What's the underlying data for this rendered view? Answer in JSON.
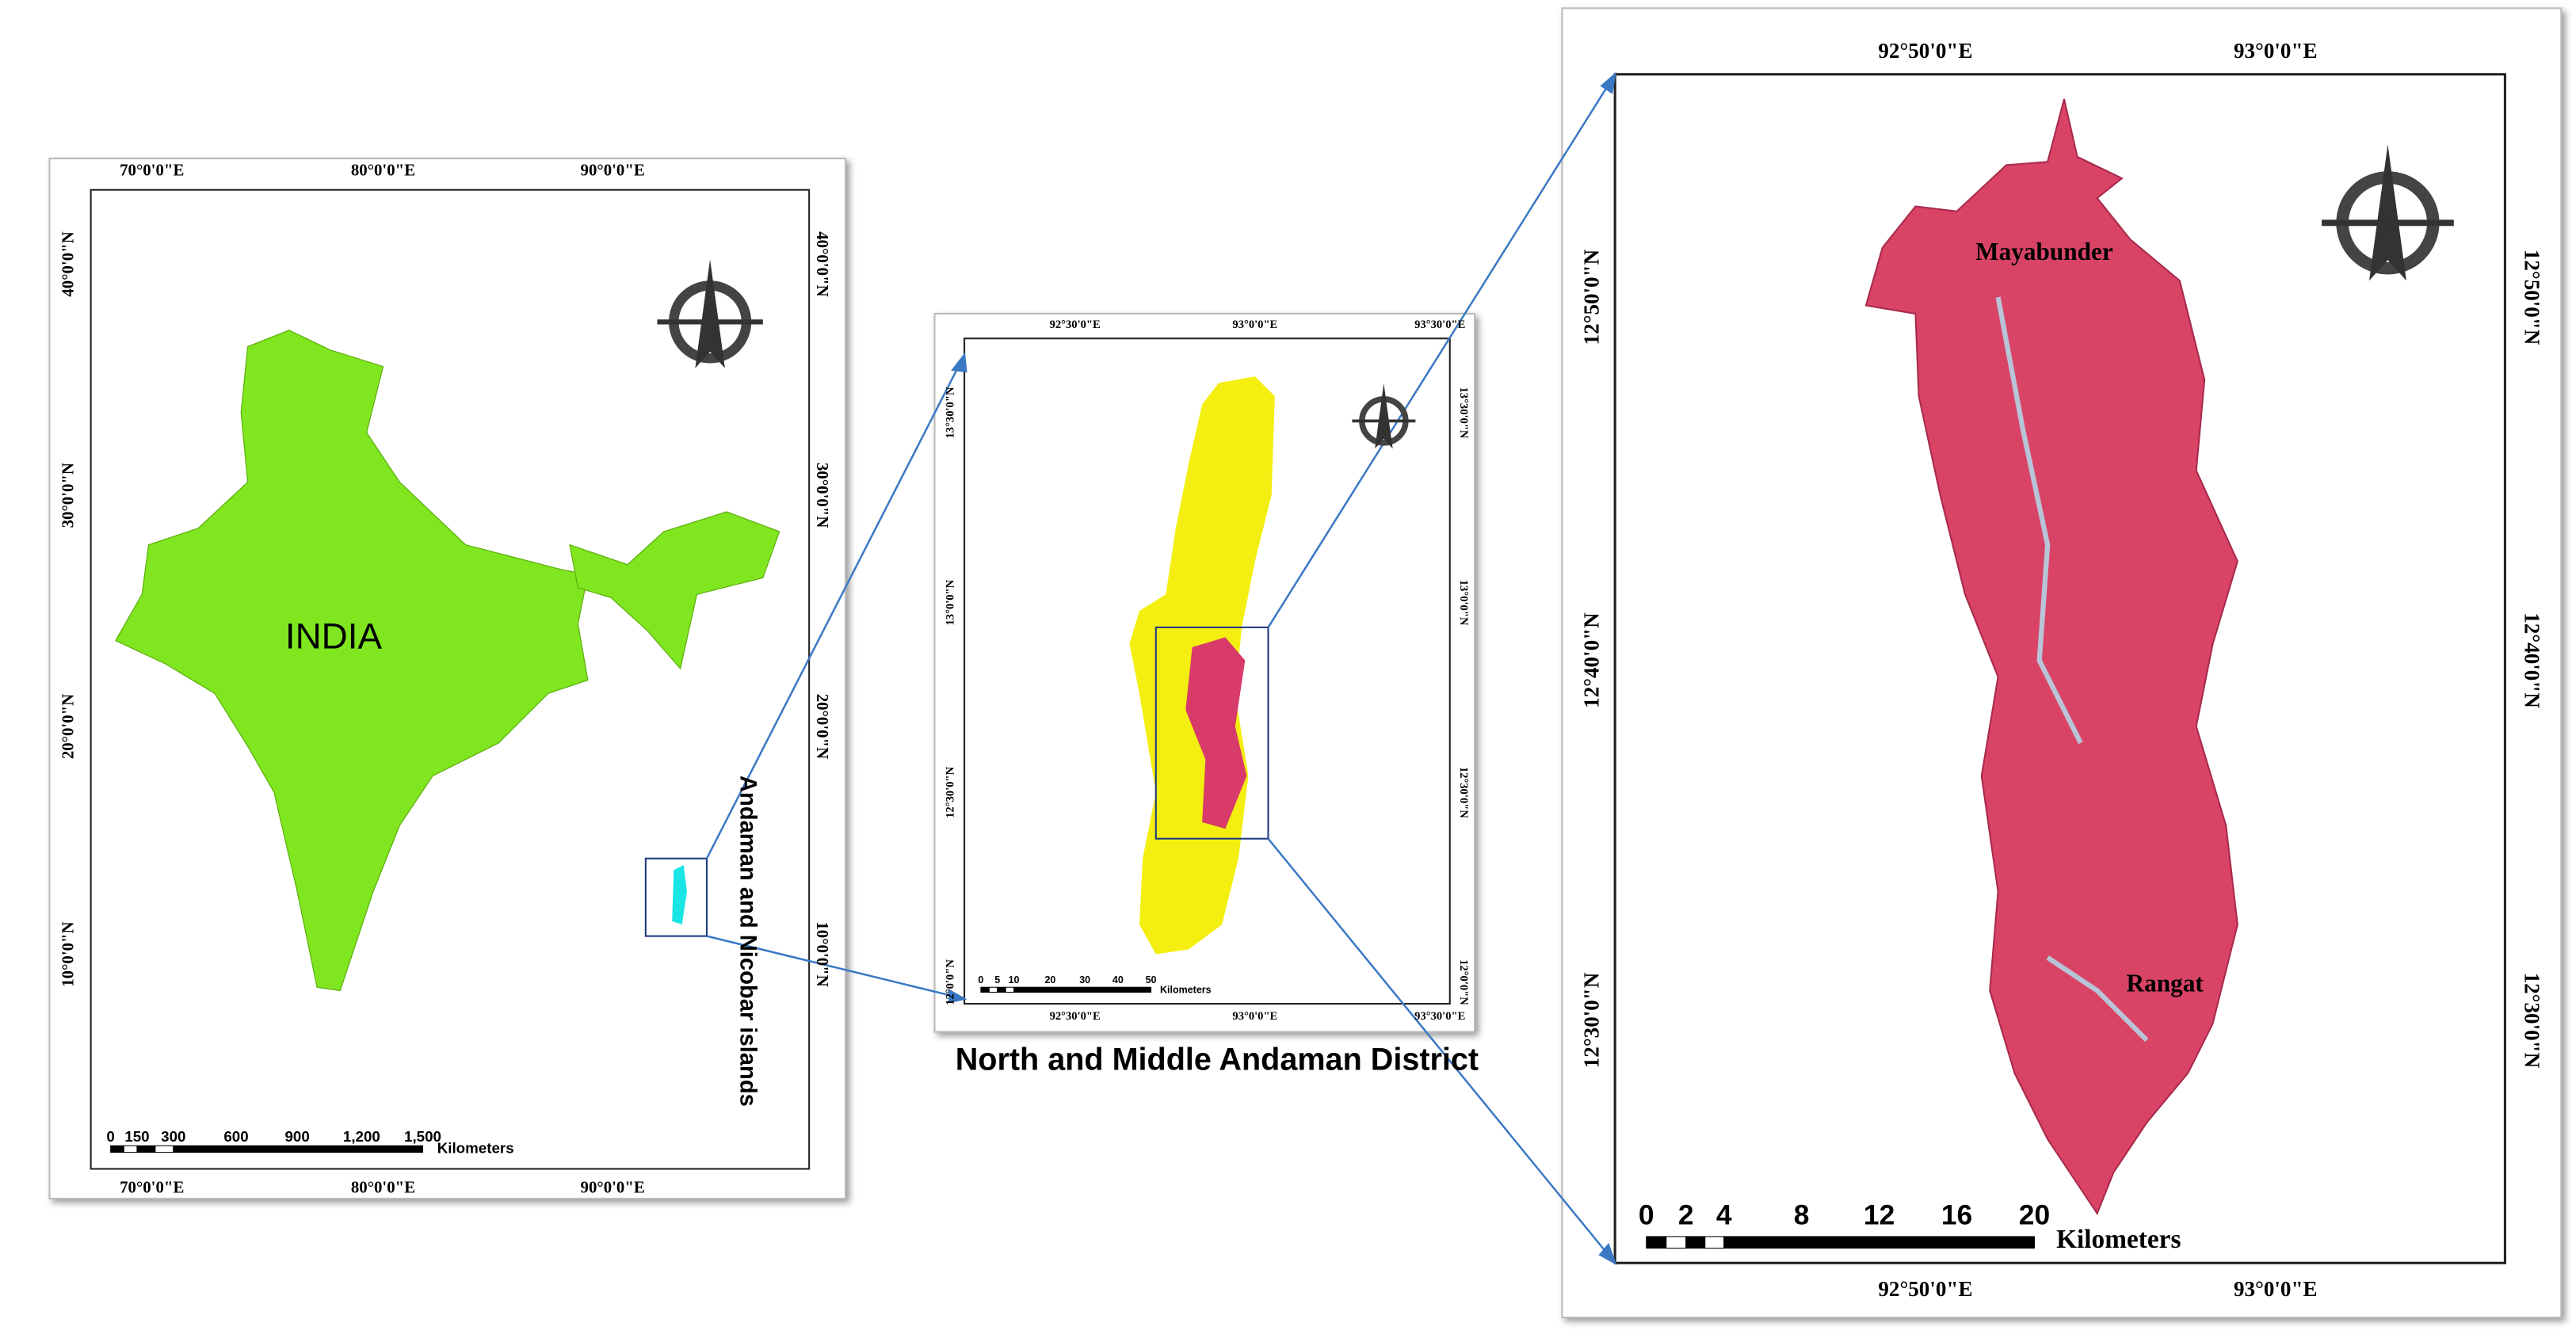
{
  "panels": [
    {
      "x_labels": [
        "70°0'0\"E",
        "80°0'0\"E",
        "90°0'0\"E"
      ],
      "y_labels": [
        "40°0'0\"N",
        "30°0'0\"N",
        "20°0'0\"N",
        "10°0'0\"N"
      ],
      "map_label": "INDIA",
      "side_label": "Andaman and Nicobar islands",
      "scale_labels": [
        "0",
        "150",
        "300",
        "600",
        "900",
        "1,200",
        "1,500"
      ],
      "scale_unit": "Kilometers"
    },
    {
      "x_labels": [
        "92°30'0\"E",
        "93°0'0\"E",
        "93°30'0\"E"
      ],
      "y_labels": [
        "13°30'0\"N",
        "13°0'0\"N",
        "12°30'0\"N",
        "12°0'0\"N"
      ],
      "caption": "North and Middle Andaman District",
      "scale_labels": [
        "0",
        "5",
        "10",
        "20",
        "30",
        "40",
        "50"
      ],
      "scale_unit": "Kilometers"
    },
    {
      "x_labels": [
        "92°50'0\"E",
        "93°0'0\"E"
      ],
      "y_labels": [
        "12°50'0\"N",
        "12°40'0\"N",
        "12°30'0\"N"
      ],
      "places": [
        "Mayabunder",
        "Rangat"
      ],
      "scale_labels": [
        "0",
        "2",
        "4",
        "8",
        "12",
        "16",
        "20"
      ],
      "scale_unit": "Kilometers"
    }
  ]
}
